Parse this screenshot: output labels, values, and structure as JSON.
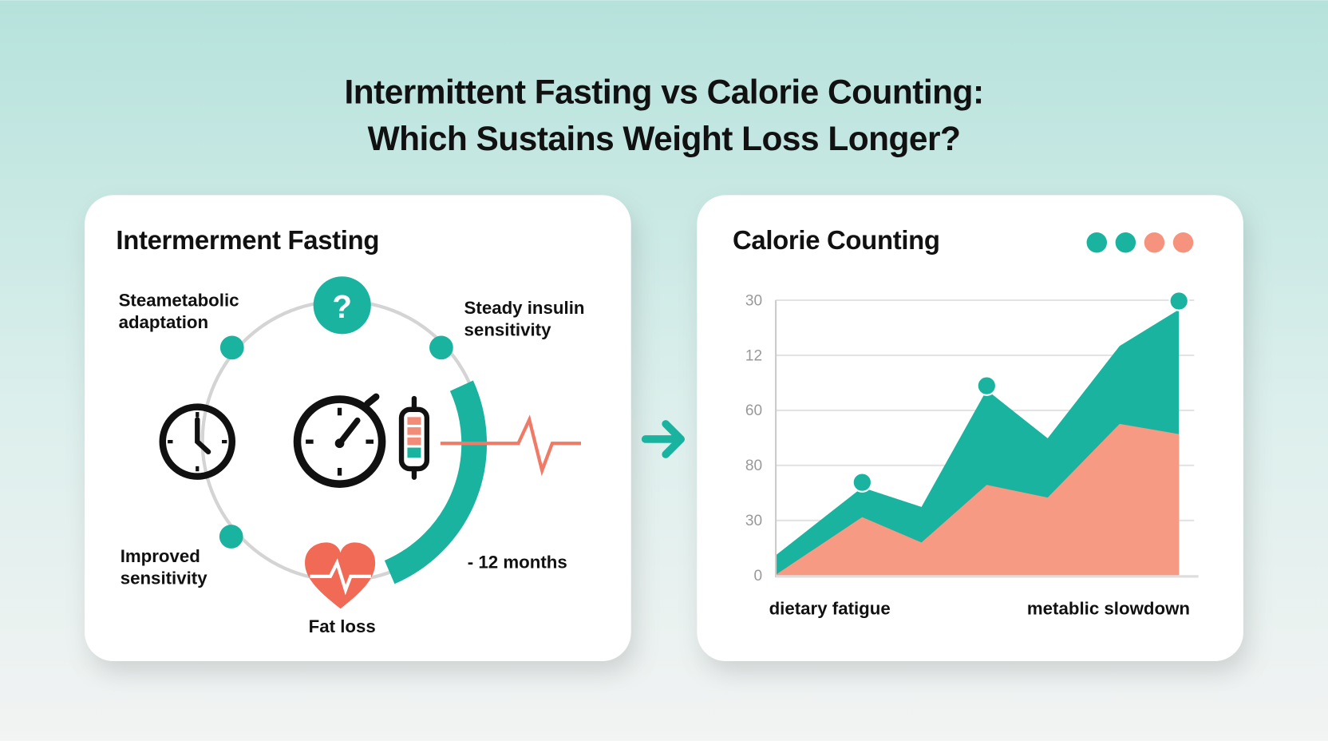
{
  "title_lines": [
    "Intermittent Fasting vs Calorie Counting:",
    "Which Sustains Weight Loss Longer?"
  ],
  "left_panel": {
    "heading": "Intermerment Fasting",
    "question_icon": "?",
    "top_left_label": [
      "Steametabolic",
      "adaptation"
    ],
    "top_right_label": [
      "Steady insulin",
      "sensitivity"
    ],
    "bottom_left_label": [
      "Improved",
      "sensitivity"
    ],
    "bottom_label": "Fat loss",
    "right_label": "- 12 months"
  },
  "right_panel": {
    "heading": "Calorie Counting",
    "y_axis_labels": [
      "30",
      "12",
      "60",
      "80",
      "30",
      "0"
    ],
    "x_axis_labels": [
      "dietary fatigue",
      "metablic slowdown"
    ]
  }
}
